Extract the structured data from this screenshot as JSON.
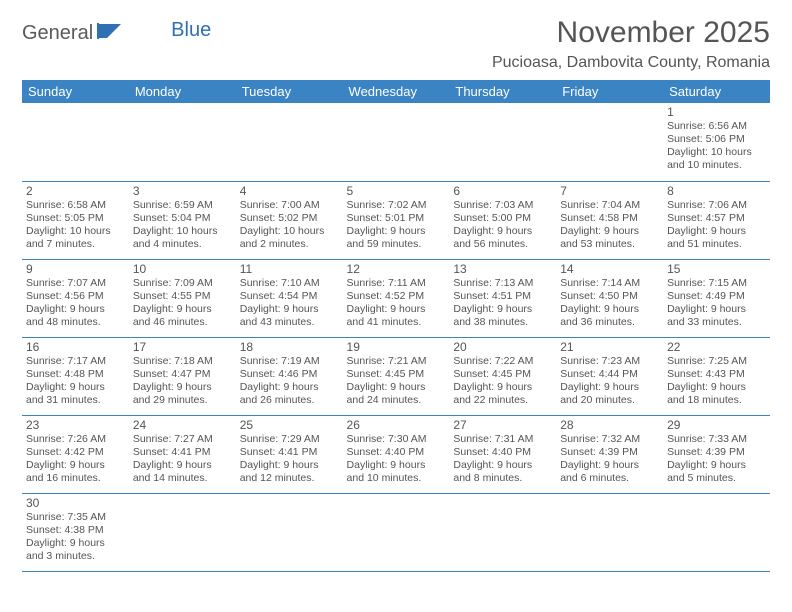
{
  "logo": {
    "part1": "General",
    "part2": "Blue"
  },
  "title": "November 2025",
  "location": "Pucioasa, Dambovita County, Romania",
  "colors": {
    "header_bg": "#3b84c4",
    "header_text": "#ffffff",
    "border": "#3b84c4",
    "body_text": "#555555",
    "logo_gray": "#5a5a5a",
    "logo_blue": "#2f6fb3"
  },
  "dayHeaders": [
    "Sunday",
    "Monday",
    "Tuesday",
    "Wednesday",
    "Thursday",
    "Friday",
    "Saturday"
  ],
  "weeks": [
    [
      null,
      null,
      null,
      null,
      null,
      null,
      {
        "n": "1",
        "sr": "6:56 AM",
        "ss": "5:06 PM",
        "dl": "10 hours and 10 minutes."
      }
    ],
    [
      {
        "n": "2",
        "sr": "6:58 AM",
        "ss": "5:05 PM",
        "dl": "10 hours and 7 minutes."
      },
      {
        "n": "3",
        "sr": "6:59 AM",
        "ss": "5:04 PM",
        "dl": "10 hours and 4 minutes."
      },
      {
        "n": "4",
        "sr": "7:00 AM",
        "ss": "5:02 PM",
        "dl": "10 hours and 2 minutes."
      },
      {
        "n": "5",
        "sr": "7:02 AM",
        "ss": "5:01 PM",
        "dl": "9 hours and 59 minutes."
      },
      {
        "n": "6",
        "sr": "7:03 AM",
        "ss": "5:00 PM",
        "dl": "9 hours and 56 minutes."
      },
      {
        "n": "7",
        "sr": "7:04 AM",
        "ss": "4:58 PM",
        "dl": "9 hours and 53 minutes."
      },
      {
        "n": "8",
        "sr": "7:06 AM",
        "ss": "4:57 PM",
        "dl": "9 hours and 51 minutes."
      }
    ],
    [
      {
        "n": "9",
        "sr": "7:07 AM",
        "ss": "4:56 PM",
        "dl": "9 hours and 48 minutes."
      },
      {
        "n": "10",
        "sr": "7:09 AM",
        "ss": "4:55 PM",
        "dl": "9 hours and 46 minutes."
      },
      {
        "n": "11",
        "sr": "7:10 AM",
        "ss": "4:54 PM",
        "dl": "9 hours and 43 minutes."
      },
      {
        "n": "12",
        "sr": "7:11 AM",
        "ss": "4:52 PM",
        "dl": "9 hours and 41 minutes."
      },
      {
        "n": "13",
        "sr": "7:13 AM",
        "ss": "4:51 PM",
        "dl": "9 hours and 38 minutes."
      },
      {
        "n": "14",
        "sr": "7:14 AM",
        "ss": "4:50 PM",
        "dl": "9 hours and 36 minutes."
      },
      {
        "n": "15",
        "sr": "7:15 AM",
        "ss": "4:49 PM",
        "dl": "9 hours and 33 minutes."
      }
    ],
    [
      {
        "n": "16",
        "sr": "7:17 AM",
        "ss": "4:48 PM",
        "dl": "9 hours and 31 minutes."
      },
      {
        "n": "17",
        "sr": "7:18 AM",
        "ss": "4:47 PM",
        "dl": "9 hours and 29 minutes."
      },
      {
        "n": "18",
        "sr": "7:19 AM",
        "ss": "4:46 PM",
        "dl": "9 hours and 26 minutes."
      },
      {
        "n": "19",
        "sr": "7:21 AM",
        "ss": "4:45 PM",
        "dl": "9 hours and 24 minutes."
      },
      {
        "n": "20",
        "sr": "7:22 AM",
        "ss": "4:45 PM",
        "dl": "9 hours and 22 minutes."
      },
      {
        "n": "21",
        "sr": "7:23 AM",
        "ss": "4:44 PM",
        "dl": "9 hours and 20 minutes."
      },
      {
        "n": "22",
        "sr": "7:25 AM",
        "ss": "4:43 PM",
        "dl": "9 hours and 18 minutes."
      }
    ],
    [
      {
        "n": "23",
        "sr": "7:26 AM",
        "ss": "4:42 PM",
        "dl": "9 hours and 16 minutes."
      },
      {
        "n": "24",
        "sr": "7:27 AM",
        "ss": "4:41 PM",
        "dl": "9 hours and 14 minutes."
      },
      {
        "n": "25",
        "sr": "7:29 AM",
        "ss": "4:41 PM",
        "dl": "9 hours and 12 minutes."
      },
      {
        "n": "26",
        "sr": "7:30 AM",
        "ss": "4:40 PM",
        "dl": "9 hours and 10 minutes."
      },
      {
        "n": "27",
        "sr": "7:31 AM",
        "ss": "4:40 PM",
        "dl": "9 hours and 8 minutes."
      },
      {
        "n": "28",
        "sr": "7:32 AM",
        "ss": "4:39 PM",
        "dl": "9 hours and 6 minutes."
      },
      {
        "n": "29",
        "sr": "7:33 AM",
        "ss": "4:39 PM",
        "dl": "9 hours and 5 minutes."
      }
    ],
    [
      {
        "n": "30",
        "sr": "7:35 AM",
        "ss": "4:38 PM",
        "dl": "9 hours and 3 minutes."
      },
      null,
      null,
      null,
      null,
      null,
      null
    ]
  ],
  "labels": {
    "sunrise": "Sunrise: ",
    "sunset": "Sunset: ",
    "daylight": "Daylight: "
  }
}
